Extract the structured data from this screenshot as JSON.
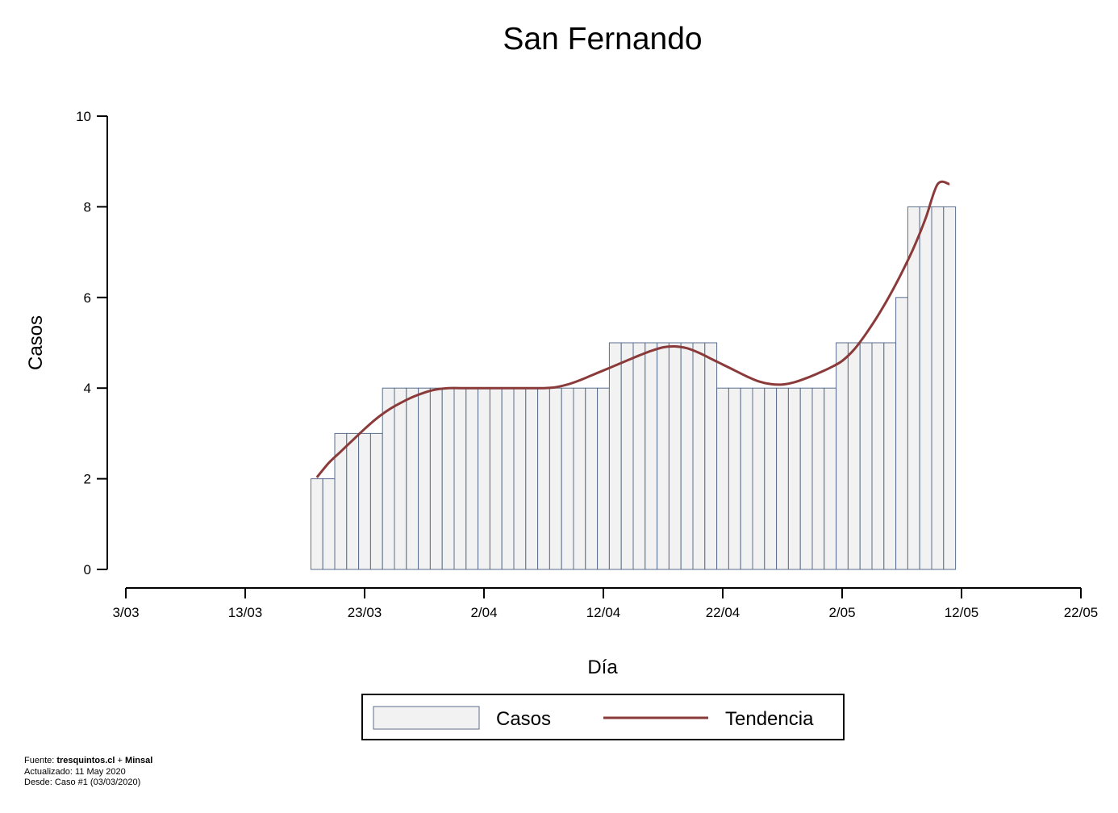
{
  "chart_data": {
    "type": "bar",
    "title": "San Fernando",
    "xlabel": "Día",
    "ylabel": "Casos",
    "ylim": [
      0,
      10
    ],
    "yticks": [
      0,
      2,
      4,
      6,
      8,
      10
    ],
    "xlim": [
      "2020-03-03",
      "2020-05-22"
    ],
    "xticks": [
      "3/03",
      "13/03",
      "23/03",
      "2/04",
      "12/04",
      "22/04",
      "2/05",
      "12/05",
      "22/05"
    ],
    "bar_dates": [
      "2020-03-19",
      "2020-03-20",
      "2020-03-21",
      "2020-03-22",
      "2020-03-23",
      "2020-03-24",
      "2020-03-25",
      "2020-03-26",
      "2020-03-27",
      "2020-03-28",
      "2020-03-29",
      "2020-03-30",
      "2020-03-31",
      "2020-04-01",
      "2020-04-02",
      "2020-04-03",
      "2020-04-04",
      "2020-04-05",
      "2020-04-06",
      "2020-04-07",
      "2020-04-08",
      "2020-04-09",
      "2020-04-10",
      "2020-04-11",
      "2020-04-12",
      "2020-04-13",
      "2020-04-14",
      "2020-04-15",
      "2020-04-16",
      "2020-04-17",
      "2020-04-18",
      "2020-04-19",
      "2020-04-20",
      "2020-04-21",
      "2020-04-22",
      "2020-04-23",
      "2020-04-24",
      "2020-04-25",
      "2020-04-26",
      "2020-04-27",
      "2020-04-28",
      "2020-04-29",
      "2020-04-30",
      "2020-05-01",
      "2020-05-02",
      "2020-05-03",
      "2020-05-04",
      "2020-05-05",
      "2020-05-06",
      "2020-05-07",
      "2020-05-08",
      "2020-05-09",
      "2020-05-10",
      "2020-05-11"
    ],
    "series": [
      {
        "name": "Casos",
        "type": "bar",
        "color": "#f2f2f2",
        "edge_color": "#5a6e8c",
        "values": [
          2,
          2,
          3,
          3,
          3,
          3,
          4,
          4,
          4,
          4,
          4,
          4,
          4,
          4,
          4,
          4,
          4,
          4,
          4,
          4,
          4,
          4,
          4,
          4,
          4,
          5,
          5,
          5,
          5,
          5,
          5,
          5,
          5,
          5,
          4,
          4,
          4,
          4,
          4,
          4,
          4,
          4,
          4,
          4,
          5,
          5,
          5,
          5,
          5,
          6,
          8,
          8,
          8,
          8
        ]
      },
      {
        "name": "Tendencia",
        "type": "line",
        "color": "#8b3a3a",
        "x": [
          "2020-03-19",
          "2020-03-20",
          "2020-03-21",
          "2020-03-22",
          "2020-03-23",
          "2020-03-24",
          "2020-03-25",
          "2020-03-26",
          "2020-03-27",
          "2020-03-28",
          "2020-03-29",
          "2020-03-30",
          "2020-03-31",
          "2020-04-01",
          "2020-04-02",
          "2020-04-03",
          "2020-04-04",
          "2020-04-05",
          "2020-04-06",
          "2020-04-07",
          "2020-04-08",
          "2020-04-09",
          "2020-04-10",
          "2020-04-11",
          "2020-04-12",
          "2020-04-13",
          "2020-04-14",
          "2020-04-15",
          "2020-04-16",
          "2020-04-17",
          "2020-04-18",
          "2020-04-19",
          "2020-04-20",
          "2020-04-21",
          "2020-04-22",
          "2020-04-23",
          "2020-04-24",
          "2020-04-25",
          "2020-04-26",
          "2020-04-27",
          "2020-04-28",
          "2020-04-29",
          "2020-04-30",
          "2020-05-01",
          "2020-05-02",
          "2020-05-03",
          "2020-05-04",
          "2020-05-05",
          "2020-05-06",
          "2020-05-07",
          "2020-05-08",
          "2020-05-09",
          "2020-05-10",
          "2020-05-11"
        ],
        "values": [
          2.03,
          2.35,
          2.6,
          2.85,
          3.1,
          3.33,
          3.52,
          3.67,
          3.8,
          3.9,
          3.97,
          4.0,
          4.0,
          4.0,
          4.0,
          4.0,
          4.0,
          4.0,
          4.0,
          4.0,
          4.02,
          4.08,
          4.17,
          4.28,
          4.39,
          4.5,
          4.61,
          4.72,
          4.82,
          4.9,
          4.92,
          4.88,
          4.78,
          4.65,
          4.52,
          4.39,
          4.26,
          4.15,
          4.09,
          4.08,
          4.13,
          4.22,
          4.33,
          4.45,
          4.6,
          4.85,
          5.2,
          5.6,
          6.05,
          6.55,
          7.1,
          7.75,
          8.5,
          8.5
        ]
      }
    ],
    "legend": {
      "placement": "bottom",
      "entries": [
        "Casos",
        "Tendencia"
      ]
    },
    "grid": false
  },
  "footer": {
    "fuente_label": "Fuente: ",
    "fuente_source1": "tresquintos.cl",
    "fuente_sep": " + ",
    "fuente_source2": "Minsal",
    "actualizado": "Actualizado: 11 May 2020",
    "desde": "Desde: Caso #1  (03/03/2020)"
  }
}
